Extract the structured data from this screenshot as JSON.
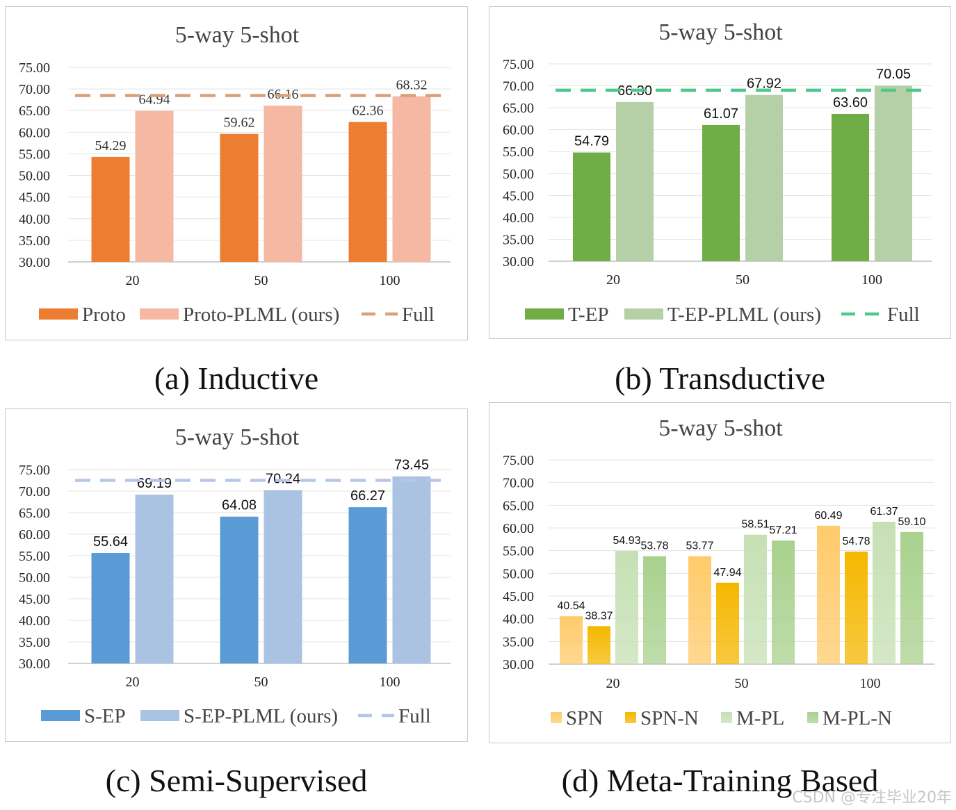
{
  "chart_data": [
    {
      "type": "bar",
      "title": "5-way 5-shot",
      "caption": "(a) Inductive",
      "categories": [
        "20",
        "50",
        "100"
      ],
      "ylim": [
        30,
        75
      ],
      "yticks": [
        "75.00",
        "70.00",
        "65.00",
        "60.00",
        "55.00",
        "50.00",
        "45.00",
        "40.00",
        "35.00",
        "30.00"
      ],
      "series": [
        {
          "name": "Proto",
          "values": [
            54.29,
            59.62,
            62.36
          ],
          "labels": [
            "54.29",
            "59.62",
            "62.36"
          ],
          "color": "#ED7D31"
        },
        {
          "name": "Proto-PLML (ours)",
          "values": [
            64.94,
            66.16,
            68.32
          ],
          "labels": [
            "64.94",
            "66.16",
            "68.32"
          ],
          "color": "#F4B8A3"
        }
      ],
      "reference_line": {
        "name": "Full",
        "value": 68.5,
        "color": "#D9A07B"
      },
      "legend_position": "bottom",
      "grid": true
    },
    {
      "type": "bar",
      "title": "5-way 5-shot",
      "caption": "(b) Transductive",
      "categories": [
        "20",
        "50",
        "100"
      ],
      "ylim": [
        30,
        75
      ],
      "yticks": [
        "75.00",
        "70.00",
        "65.00",
        "60.00",
        "55.00",
        "50.00",
        "45.00",
        "40.00",
        "35.00",
        "30.00"
      ],
      "series": [
        {
          "name": "T-EP",
          "values": [
            54.79,
            61.07,
            63.6
          ],
          "labels": [
            "54.79",
            "61.07",
            "63.60"
          ],
          "color": "#70AD47"
        },
        {
          "name": "T-EP-PLML (ours)",
          "values": [
            66.3,
            67.92,
            70.05
          ],
          "labels": [
            "66.30",
            "67.92",
            "70.05"
          ],
          "color": "#B5D0A7"
        }
      ],
      "reference_line": {
        "name": "Full",
        "value": 69.0,
        "color": "#4FC88A"
      },
      "legend_position": "bottom",
      "grid": true
    },
    {
      "type": "bar",
      "title": "5-way 5-shot",
      "caption": "(c) Semi-Supervised",
      "categories": [
        "20",
        "50",
        "100"
      ],
      "ylim": [
        30,
        75
      ],
      "yticks": [
        "75.00",
        "70.00",
        "65.00",
        "60.00",
        "55.00",
        "50.00",
        "45.00",
        "40.00",
        "35.00",
        "30.00"
      ],
      "series": [
        {
          "name": "S-EP",
          "values": [
            55.64,
            64.08,
            66.27
          ],
          "labels": [
            "55.64",
            "64.08",
            "66.27"
          ],
          "color": "#5B9BD5"
        },
        {
          "name": "S-EP-PLML (ours)",
          "values": [
            69.19,
            70.24,
            73.45
          ],
          "labels": [
            "69.19",
            "70.24",
            "73.45"
          ],
          "color": "#ABC3E3"
        }
      ],
      "reference_line": {
        "name": "Full",
        "value": 72.5,
        "color": "#B4C7E7"
      },
      "legend_position": "bottom",
      "grid": true
    },
    {
      "type": "bar",
      "title": "5-way 5-shot",
      "caption": "(d) Meta-Training Based",
      "categories": [
        "20",
        "50",
        "100"
      ],
      "ylim": [
        30,
        75
      ],
      "yticks": [
        "75.00",
        "70.00",
        "65.00",
        "60.00",
        "55.00",
        "50.00",
        "45.00",
        "40.00",
        "35.00",
        "30.00"
      ],
      "series": [
        {
          "name": "SPN",
          "values": [
            40.54,
            53.77,
            60.49
          ],
          "labels": [
            "40.54",
            "53.77",
            "60.49"
          ],
          "color": "#FFCB6B"
        },
        {
          "name": "SPN-N",
          "values": [
            38.37,
            47.94,
            54.78
          ],
          "labels": [
            "38.37",
            "47.94",
            "54.78"
          ],
          "color": "#F5B700"
        },
        {
          "name": "M-PL",
          "values": [
            54.93,
            58.51,
            61.37
          ],
          "labels": [
            "54.93",
            "58.51",
            "61.37"
          ],
          "color": "#C6E0B4"
        },
        {
          "name": "M-PL-N",
          "values": [
            53.78,
            57.21,
            59.1
          ],
          "labels": [
            "53.78",
            "57.21",
            "59.10"
          ],
          "color": "#A9D18E"
        }
      ],
      "legend_position": "bottom",
      "grid": true
    }
  ],
  "watermark": "CSDN @专注毕业20年"
}
